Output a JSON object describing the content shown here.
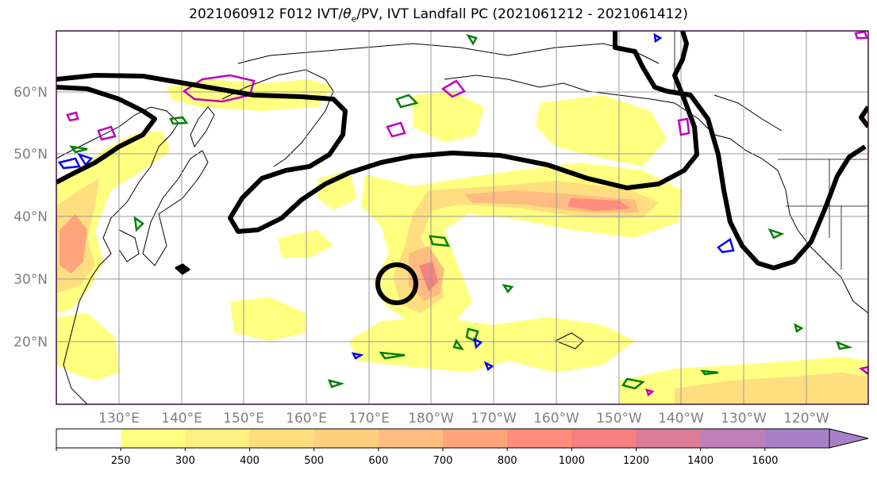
{
  "title": {
    "prefix": "2021060912 F012 IVT/",
    "theta": "θ",
    "theta_sub": "e",
    "suffix": "/PV, IVT Landfall PC (2021061212 - 2021061412)"
  },
  "lat_labels": [
    "60°N",
    "50°N",
    "40°N",
    "30°N",
    "20°N"
  ],
  "lon_labels": [
    "130°E",
    "140°E",
    "150°E",
    "160°E",
    "170°E",
    "180°W",
    "170°W",
    "160°W",
    "150°W",
    "140°W",
    "130°W",
    "120°W"
  ],
  "colorbar": {
    "ticks": [
      "250",
      "300",
      "400",
      "500",
      "600",
      "700",
      "800",
      "1000",
      "1200",
      "1400",
      "1600"
    ],
    "colors": [
      "#ffffff",
      "#ffff80",
      "#ffee80",
      "#ffde80",
      "#ffcf80",
      "#ffbc80",
      "#ffa57c",
      "#ff8c7c",
      "#f5807f",
      "#dc7c99",
      "#bf80b8",
      "#a880c8"
    ]
  },
  "colors": {
    "landfall_pc": "#000000",
    "pv_green": "#008000",
    "pv_blue": "#0000ff",
    "pv_magenta": "#c000c0",
    "grid": "#999999",
    "border": "#3a1040"
  }
}
